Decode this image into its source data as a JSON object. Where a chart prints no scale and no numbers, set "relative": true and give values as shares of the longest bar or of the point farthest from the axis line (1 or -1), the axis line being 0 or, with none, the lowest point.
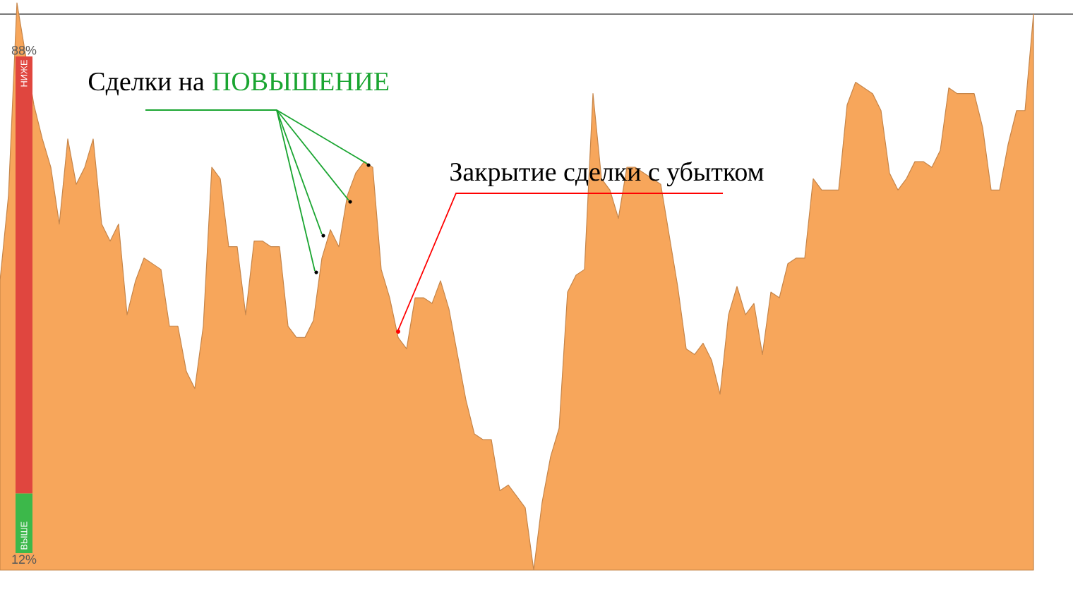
{
  "chart_data": [
    {
      "type": "area",
      "relative": true,
      "color": "#f7a65b",
      "categories": [
        null,
        null,
        null,
        null,
        null,
        null,
        null,
        null,
        null,
        null,
        null,
        null,
        null,
        null,
        null,
        null,
        null,
        null,
        null,
        null,
        null,
        null,
        null,
        null,
        null,
        null,
        null,
        null,
        null,
        null,
        null,
        null,
        null,
        null,
        null,
        null,
        null,
        null,
        null,
        null,
        null,
        null,
        null,
        null,
        null,
        null,
        null,
        null,
        null,
        null,
        null,
        null,
        null,
        null,
        null,
        null,
        null,
        null,
        null,
        null,
        null,
        null,
        null,
        null,
        null,
        null,
        null,
        null,
        null,
        null,
        null,
        null,
        null,
        null,
        null,
        null,
        null,
        null,
        null,
        null,
        null,
        null,
        null,
        null,
        null,
        null,
        null,
        null,
        null,
        null,
        null,
        null,
        null,
        null,
        null,
        null,
        null,
        null,
        null,
        null,
        null,
        null,
        null,
        null,
        null,
        null,
        null,
        null,
        null,
        null,
        null,
        null,
        null,
        null,
        null,
        null,
        null,
        null,
        null,
        null,
        null,
        null,
        null
      ],
      "values": [
        0.51,
        0.66,
        1.0,
        null,
        0.82,
        0.76,
        0.71,
        0.61,
        0.76,
        0.68,
        0.71,
        0.76,
        0.61,
        0.58,
        0.61,
        0.45,
        0.51,
        0.55,
        0.54,
        0.53,
        0.43,
        0.43,
        0.35,
        0.32,
        0.43,
        0.71,
        0.69,
        0.57,
        0.57,
        0.45,
        0.58,
        0.58,
        0.57,
        0.57,
        0.43,
        0.41,
        0.41,
        0.44,
        0.55,
        0.6,
        0.57,
        0.66,
        0.7,
        0.72,
        0.71,
        0.53,
        0.48,
        0.41,
        0.39,
        0.48,
        0.48,
        0.47,
        0.51,
        0.46,
        0.38,
        0.3,
        0.24,
        0.23,
        0.23,
        0.14,
        0.15,
        0.13,
        0.11,
        0.0,
        0.12,
        0.2,
        0.25,
        0.49,
        0.52,
        0.53,
        0.84,
        0.69,
        0.67,
        0.62,
        0.71,
        0.71,
        0.7,
        0.69,
        0.68,
        0.59,
        0.5,
        0.39,
        0.38,
        0.4,
        0.37,
        0.31,
        0.45,
        0.5,
        0.45,
        0.47,
        0.38,
        0.49,
        0.48,
        0.54,
        0.55,
        0.55,
        0.69,
        0.67,
        0.67,
        0.67,
        0.82,
        0.86,
        0.85,
        0.84,
        0.81,
        0.7,
        0.67,
        0.69,
        0.72,
        0.72,
        0.71,
        0.74,
        0.85,
        0.84,
        0.84,
        0.84,
        0.78,
        0.67,
        0.67,
        0.75,
        0.81,
        0.81,
        0.98
      ],
      "ref_lines": [
        {
          "axis": "y",
          "value": 0.98,
          "color": "#4c4c4c"
        }
      ],
      "annotations": [
        "Сделки на ",
        "ПОВЫШЕНИЕ",
        "Закрытие сделки с убытком"
      ]
    },
    {
      "type": "bar",
      "stacked": true,
      "categories": [
        null
      ],
      "series": [
        {
          "name": "ВЫШЕ",
          "color": "#3cb84a",
          "values": [
            12
          ],
          "value_labels": [
            "12%"
          ]
        },
        {
          "name": "НИЖЕ",
          "color": "#e0463f",
          "values": [
            88
          ],
          "value_labels": [
            "88%"
          ]
        }
      ]
    }
  ]
}
